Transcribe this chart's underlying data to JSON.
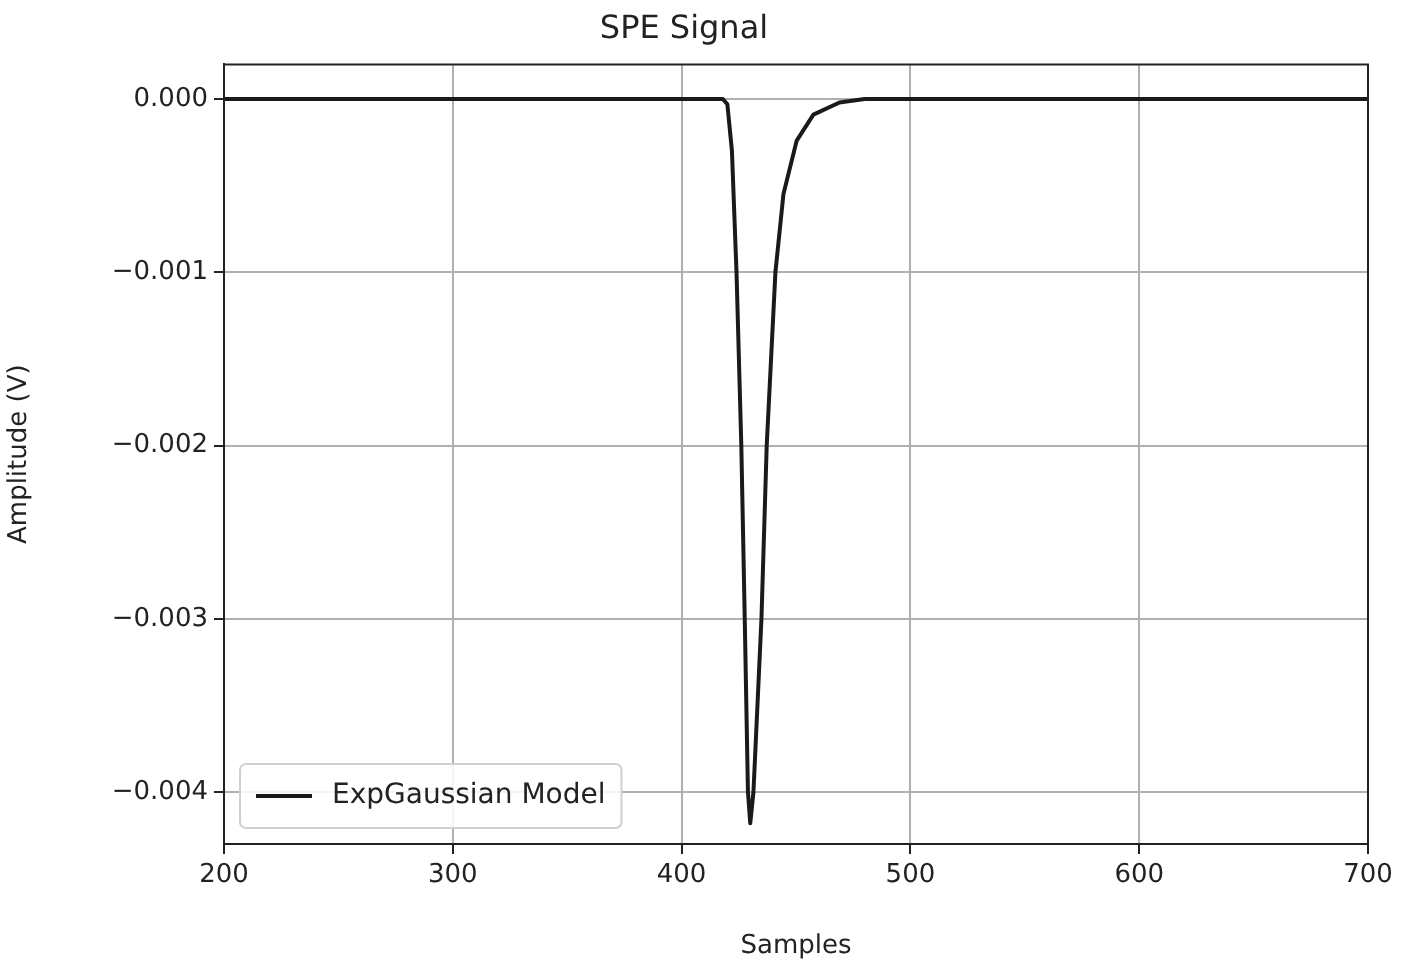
{
  "chart_data": {
    "type": "line",
    "title": "SPE Signal",
    "xlabel": "Samples",
    "ylabel": "Amplitude (V)",
    "series": [
      {
        "name": "ExpGaussian Model",
        "color": "#1a1a1a",
        "x": [
          200,
          418,
          420,
          422,
          424,
          426.1,
          427.6,
          429,
          430,
          431.4,
          434.9,
          437.2,
          441,
          444.5,
          450.3,
          457.6,
          469,
          480,
          700
        ],
        "values": [
          0,
          0,
          -3e-05,
          -0.0003,
          -0.001,
          -0.002,
          -0.003,
          -0.004,
          -0.00418,
          -0.004,
          -0.003,
          -0.002,
          -0.001,
          -0.00055,
          -0.00024,
          -9e-05,
          -2e-05,
          0,
          0
        ]
      }
    ],
    "xlim": [
      200,
      700
    ],
    "xticks": [
      200,
      300,
      400,
      500,
      600,
      700
    ],
    "ylim": [
      -0.0043,
      0.0002
    ],
    "yticks": [
      {
        "value": 0,
        "label": "0.000"
      },
      {
        "value": -0.001,
        "label": "−0.001"
      },
      {
        "value": -0.002,
        "label": "−0.002"
      },
      {
        "value": -0.003,
        "label": "−0.003"
      },
      {
        "value": -0.004,
        "label": "−0.004"
      }
    ],
    "grid": true,
    "legend": "bottom left",
    "marker": "none",
    "line_style": "solid"
  }
}
